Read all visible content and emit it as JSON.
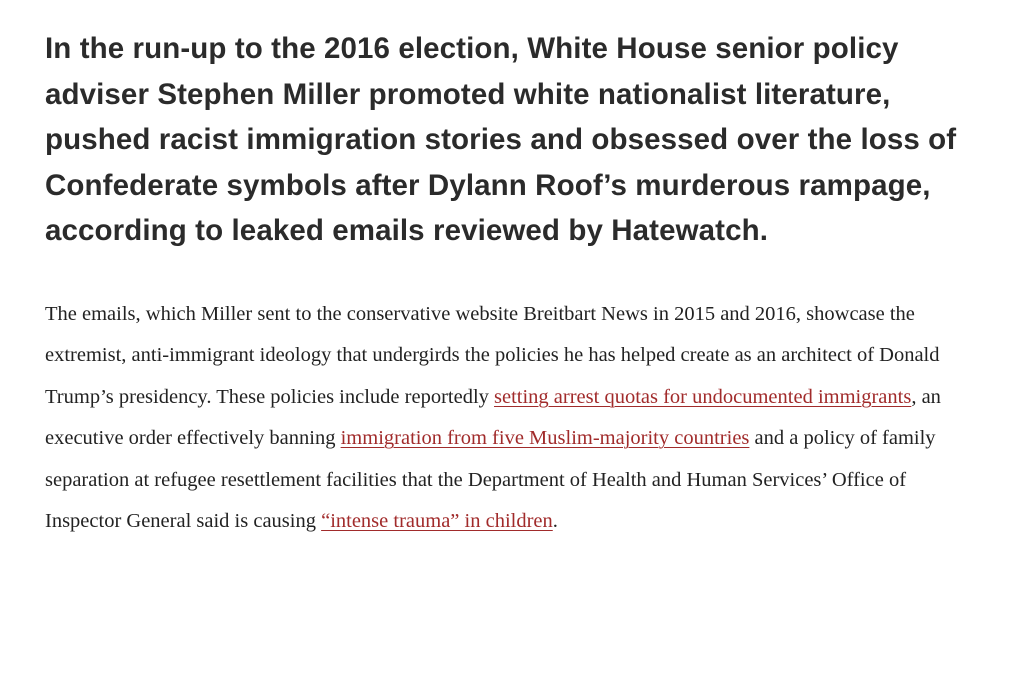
{
  "article": {
    "lede": "In the run-up to the 2016 election, White House senior policy adviser Stephen Miller promoted white nationalist literature, pushed racist immigration stories and obsessed over the loss of Confederate symbols after Dylann Roof’s murderous rampage, according to leaked emails reviewed by Hatewatch.",
    "paragraph": {
      "text_1": "The emails, which Miller sent to the conservative website Breitbart News in 2015 and 2016, showcase the extremist, anti-immigrant ideology that undergirds the policies he has helped create as an architect of Donald Trump’s presidency. These policies include reportedly ",
      "link_1": "setting arrest quotas for undocumented immigrants",
      "text_2": ", an executive order effectively banning ",
      "link_2": "immigration from five Muslim-majority countries",
      "text_3": " and a policy of family separation at refugee resettlement facilities that the Department of Health and Human Services’ Office of Inspector General said is causing ",
      "link_3": "“intense trauma” in children",
      "text_4": "."
    }
  },
  "colors": {
    "heading": "#2b2b2b",
    "body": "#222222",
    "link": "#a12b2b",
    "background": "#ffffff"
  }
}
